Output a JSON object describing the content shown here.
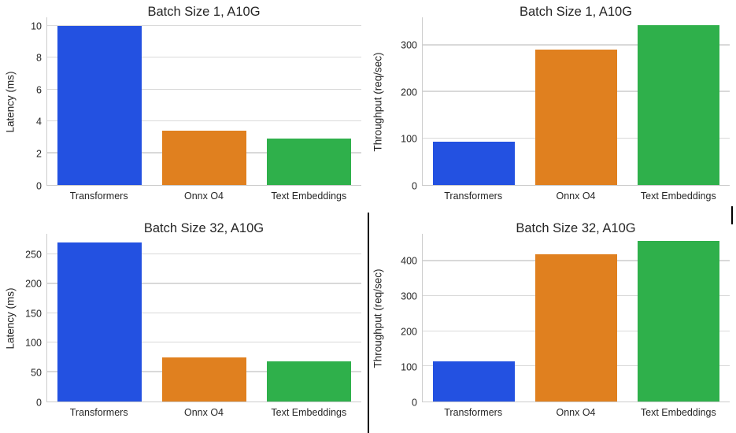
{
  "page": {
    "background": "#ffffff"
  },
  "palette": {
    "bars": [
      "#2351e1",
      "#e0801f",
      "#2fb04b"
    ],
    "gridline": "#d9d9d9",
    "spine": "#cccccc",
    "text": "#262626",
    "divider": "#000000"
  },
  "chart_data": [
    {
      "type": "bar",
      "title": "Batch Size 1, A10G",
      "xlabel": "",
      "ylabel": "Latency (ms)",
      "categories": [
        "Transformers",
        "Onnx O4",
        "Text Embeddings"
      ],
      "values": [
        10.0,
        3.4,
        2.9
      ],
      "yticks": [
        0,
        2,
        4,
        6,
        8,
        10
      ],
      "ylim": [
        0,
        10.55
      ],
      "grid": true,
      "legend": false
    },
    {
      "type": "bar",
      "title": "Batch Size 1, A10G",
      "xlabel": "",
      "ylabel": "Throughput (req/sec)",
      "categories": [
        "Transformers",
        "Onnx O4",
        "Text Embeddings"
      ],
      "values": [
        93,
        290,
        343
      ],
      "yticks": [
        0,
        100,
        200,
        300
      ],
      "ylim": [
        0,
        360
      ],
      "grid": true,
      "legend": false
    },
    {
      "type": "bar",
      "title": "Batch Size 32, A10G",
      "xlabel": "",
      "ylabel": "Latency (ms)",
      "categories": [
        "Transformers",
        "Onnx O4",
        "Text Embeddings"
      ],
      "values": [
        270,
        75,
        68
      ],
      "yticks": [
        0,
        50,
        100,
        150,
        200,
        250
      ],
      "ylim": [
        0,
        285
      ],
      "grid": true,
      "legend": false
    },
    {
      "type": "bar",
      "title": "Batch Size 32, A10G",
      "xlabel": "",
      "ylabel": "Throughput (req/sec)",
      "categories": [
        "Transformers",
        "Onnx O4",
        "Text Embeddings"
      ],
      "values": [
        115,
        420,
        457
      ],
      "yticks": [
        0,
        100,
        200,
        300,
        400
      ],
      "ylim": [
        0,
        478
      ],
      "grid": true,
      "legend": false
    }
  ]
}
